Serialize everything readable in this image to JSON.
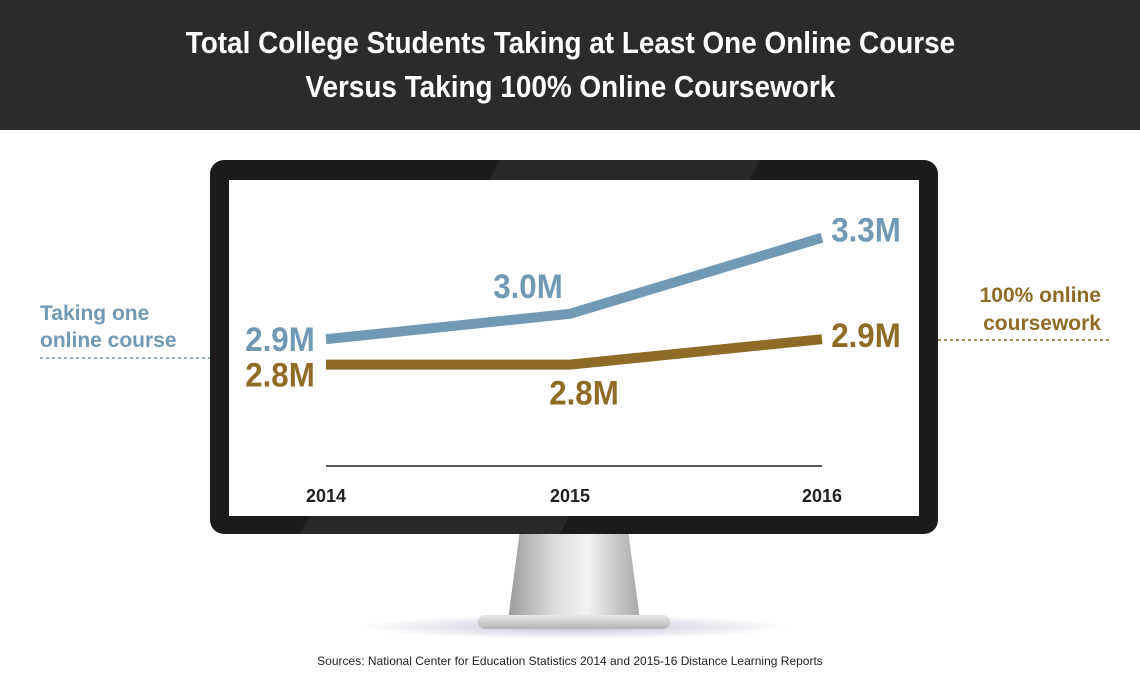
{
  "title_line1": "Total College Students Taking at Least One Online Course",
  "title_line2": "Versus Taking 100% Online Coursework",
  "source": "Sources: National Center for Education Statistics 2014 and 2015-16 Distance Learning Reports",
  "colors": {
    "header_bg": "#2b2b2b",
    "series_one_course": "#7199b4",
    "series_fully_online": "#8e6b27",
    "monitor_frame": "#1c1c1c"
  },
  "chart_data": {
    "type": "line",
    "x": [
      "2014",
      "2015",
      "2016"
    ],
    "ylim": [
      2.7,
      3.35
    ],
    "grid": false,
    "series": [
      {
        "name": "Taking one online course",
        "label_lines": [
          "Taking one",
          "online course"
        ],
        "values": [
          2.9,
          3.0,
          3.3
        ],
        "data_labels": [
          "2.9M",
          "3.0M",
          "3.3M"
        ]
      },
      {
        "name": "100% online coursework",
        "label_lines": [
          "100% online",
          "coursework"
        ],
        "values": [
          2.8,
          2.8,
          2.9
        ],
        "data_labels": [
          "2.8M",
          "2.8M",
          "2.9M"
        ]
      }
    ]
  }
}
